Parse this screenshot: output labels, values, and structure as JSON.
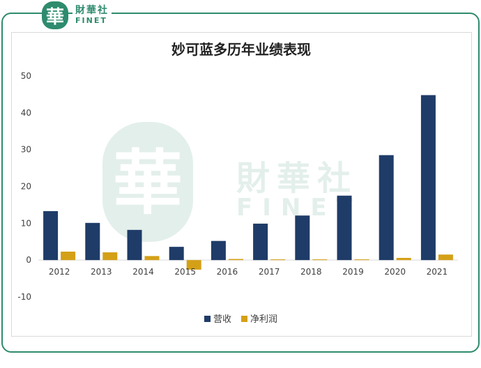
{
  "brand": {
    "logo_glyph": "華",
    "name_cn": "財華社",
    "name_en": "FINET",
    "color": "#2e8b6e"
  },
  "chart_data": {
    "type": "bar",
    "title": "妙可蓝多历年业绩表现",
    "categories": [
      "2012",
      "2013",
      "2014",
      "2015",
      "2016",
      "2017",
      "2018",
      "2019",
      "2020",
      "2021"
    ],
    "series": [
      {
        "name": "营收",
        "color": "#1f3c68",
        "values": [
          13.3,
          10.1,
          8.2,
          3.6,
          5.2,
          9.9,
          12.1,
          17.5,
          28.5,
          44.8
        ]
      },
      {
        "name": "净利润",
        "color": "#d4a017",
        "values": [
          2.3,
          2.1,
          1.1,
          -2.6,
          0.3,
          0.2,
          0.2,
          0.2,
          0.6,
          1.5
        ]
      }
    ],
    "ylim": [
      -10,
      50
    ],
    "yticks": [
      "-10",
      "0",
      "10",
      "20",
      "30",
      "40",
      "50"
    ],
    "xlabel": "",
    "ylabel": "",
    "legend_position": "bottom"
  }
}
